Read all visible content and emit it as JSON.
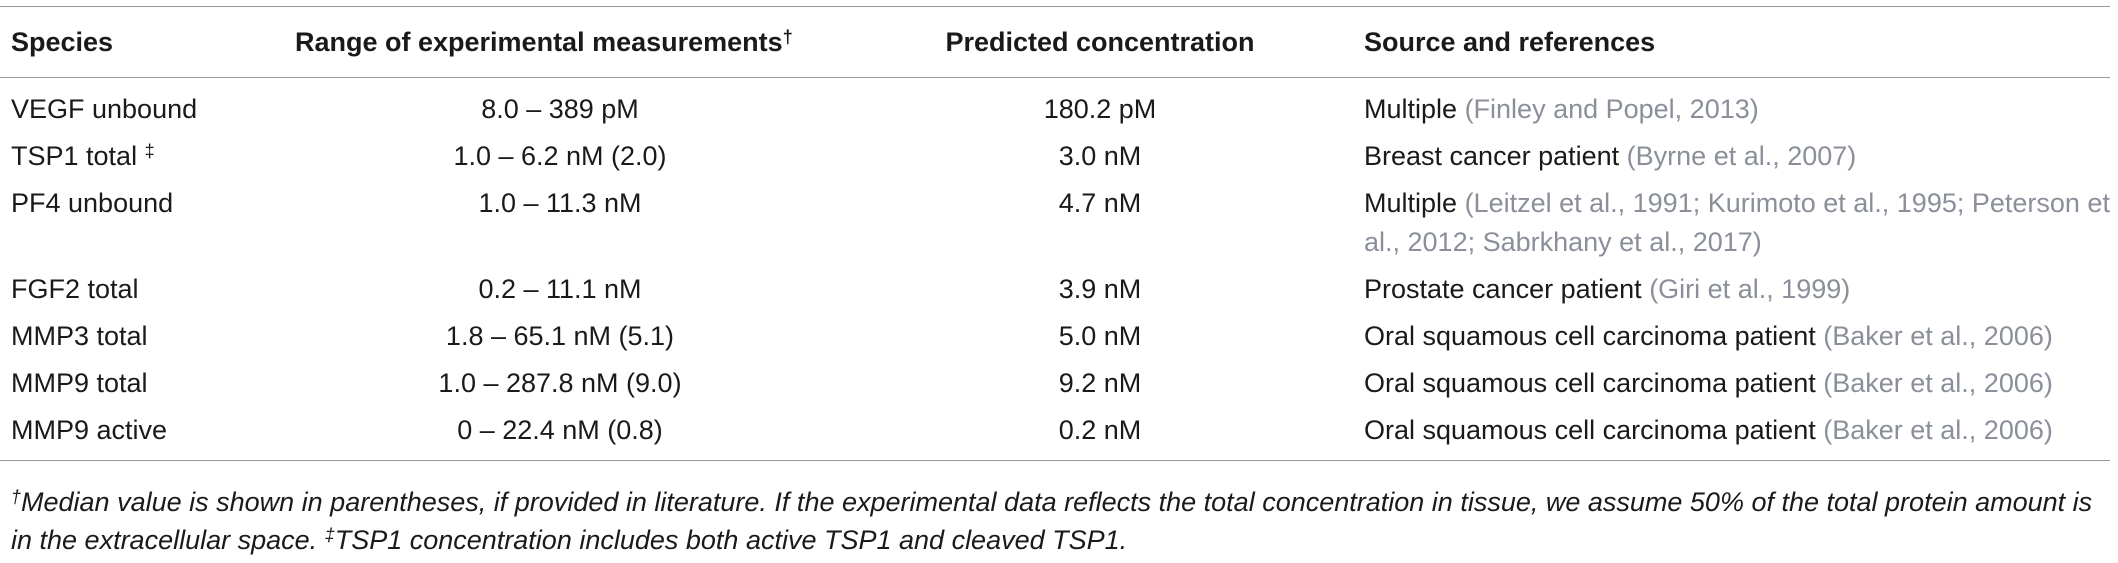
{
  "table": {
    "columns": [
      "Species",
      "Range of experimental measurements",
      "Predicted concentration",
      "Source and references"
    ],
    "column_1_mark": "†",
    "rows": [
      {
        "species": "VEGF unbound",
        "range": "8.0 – 389 pM",
        "predicted": "180.2 pM",
        "source": "Multiple",
        "refs": "(Finley and Popel, 2013)"
      },
      {
        "species": "TSP1 total",
        "species_mark": "‡",
        "range": "1.0 – 6.2 nM (2.0)",
        "predicted": "3.0 nM",
        "source": "Breast cancer patient",
        "refs": "(Byrne et al., 2007)"
      },
      {
        "species": "PF4 unbound",
        "range": "1.0 – 11.3 nM",
        "predicted": "4.7 nM",
        "source": "Multiple",
        "refs": "(Leitzel et al., 1991; Kurimoto et al., 1995; Peterson et al., 2012; Sabrkhany et al., 2017)"
      },
      {
        "species": "FGF2 total",
        "range": "0.2 – 11.1 nM",
        "predicted": "3.9 nM",
        "source": "Prostate cancer patient",
        "refs": "(Giri et al., 1999)"
      },
      {
        "species": "MMP3 total",
        "range": "1.8 – 65.1 nM (5.1)",
        "predicted": "5.0 nM",
        "source": "Oral squamous cell carcinoma patient",
        "refs": "(Baker et al., 2006)"
      },
      {
        "species": "MMP9 total",
        "range": "1.0 – 287.8 nM (9.0)",
        "predicted": "9.2 nM",
        "source": "Oral squamous cell carcinoma patient",
        "refs": "(Baker et al., 2006)"
      },
      {
        "species": "MMP9 active",
        "range": "0 – 22.4 nM (0.8)",
        "predicted": "0.2 nM",
        "source": "Oral squamous cell carcinoma patient",
        "refs": "(Baker et al., 2006)"
      }
    ]
  },
  "footnote": [
    {
      "mark": "†",
      "text": "Median value is shown in parentheses, if provided in literature. If the experimental data reflects the total concentration in tissue, we assume 50% of the total protein amount is in the extracellular space."
    },
    {
      "mark": "‡",
      "text": "TSP1 concentration includes both active TSP1 and cleaved TSP1."
    }
  ]
}
